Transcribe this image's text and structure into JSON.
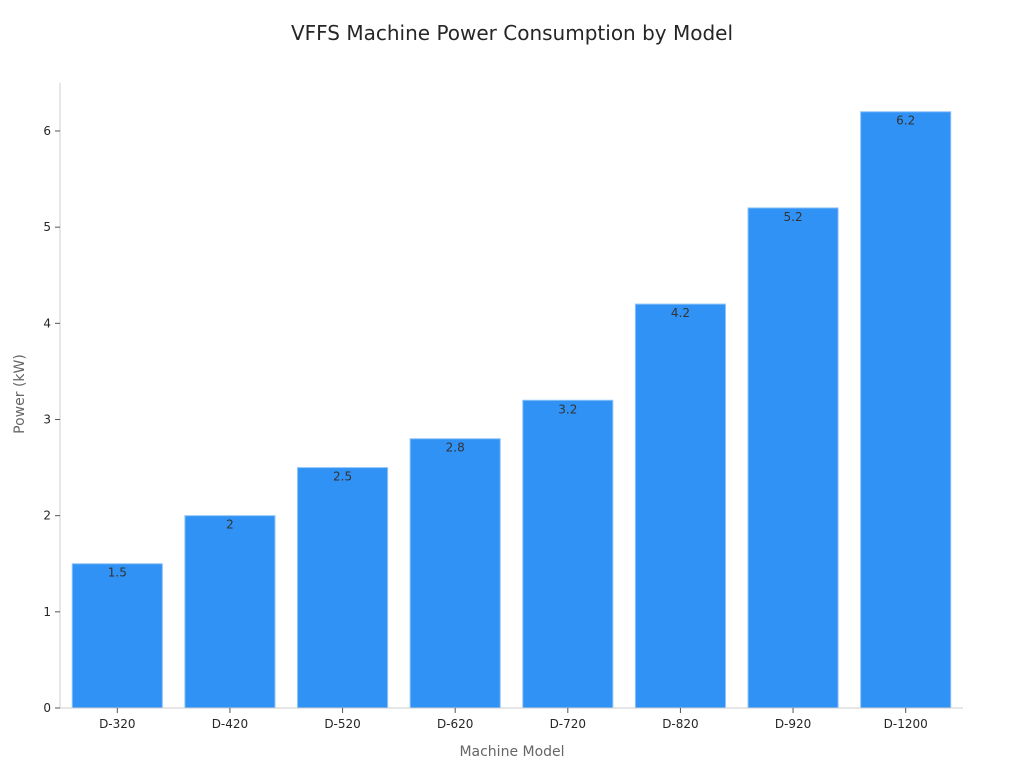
{
  "chart_data": {
    "type": "bar",
    "title": "VFFS Machine Power Consumption by Model",
    "xlabel": "Machine Model",
    "ylabel": "Power (kW)",
    "categories": [
      "D-320",
      "D-420",
      "D-520",
      "D-620",
      "D-720",
      "D-820",
      "D-920",
      "D-1200"
    ],
    "values": [
      1.5,
      2,
      2.5,
      2.8,
      3.2,
      4.2,
      5.2,
      6.2
    ],
    "data_labels": [
      "1.5",
      "2",
      "2.5",
      "2.8",
      "3.2",
      "4.2",
      "5.2",
      "6.2"
    ],
    "ylim": [
      0,
      6.5
    ],
    "yticks": [
      0,
      1,
      2,
      3,
      4,
      5,
      6
    ],
    "grid": false,
    "legend": "none",
    "bar_color": "#3192f6",
    "bar_edge_color": "#8ec4f7"
  }
}
